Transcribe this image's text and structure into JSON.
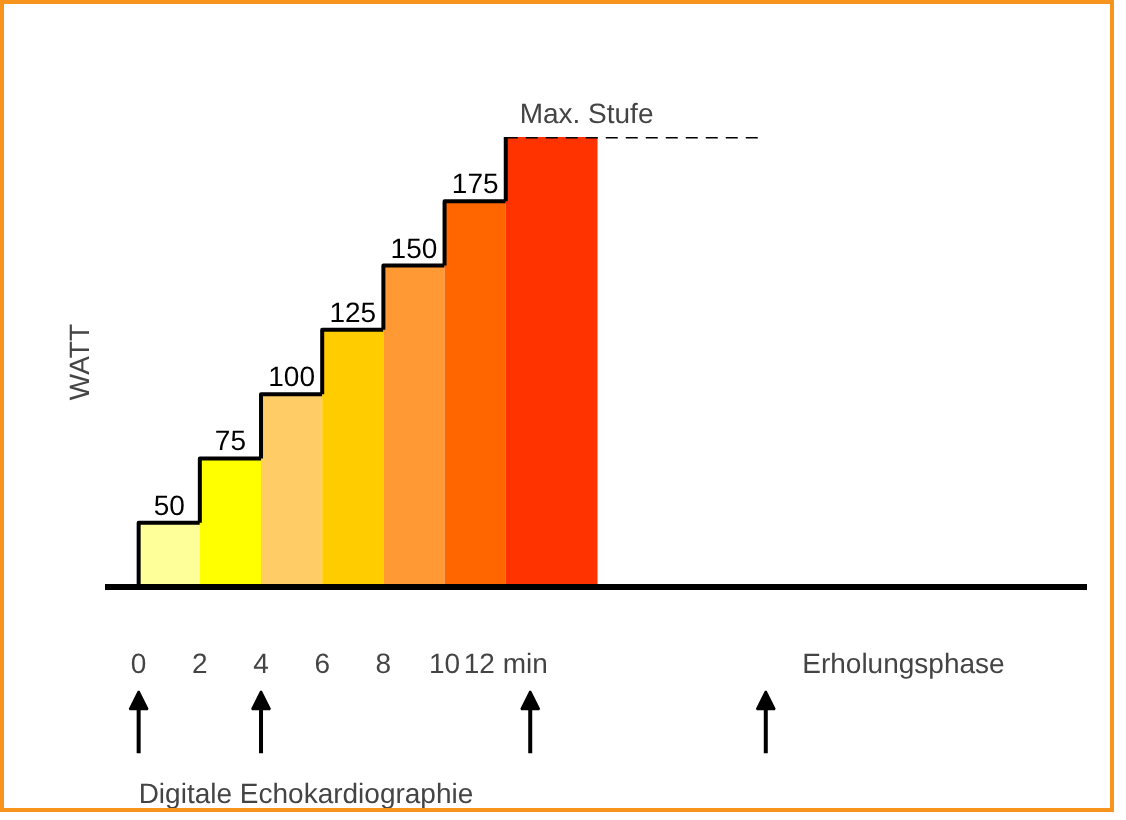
{
  "chart_data": {
    "type": "bar",
    "ylabel": "WATT",
    "x": [
      1,
      3,
      5,
      7,
      9,
      11,
      13.5
    ],
    "series": [
      {
        "colors": [
          "#ffff99",
          "#ffff00",
          "#ffcc66",
          "#ffcc00",
          "#ff9933",
          "#ff6600",
          "#ff3300"
        ],
        "values": [
          50,
          75,
          100,
          125,
          150,
          175,
          200
        ],
        "value_labels": [
          "50",
          "75",
          "100",
          "125",
          "150",
          "175",
          null
        ]
      }
    ],
    "xlim": [
      -1.1,
      31
    ],
    "xticks": [
      0,
      2,
      4,
      6,
      8,
      10,
      {
        "value": 12,
        "label": "12 min"
      },
      {
        "value": 25,
        "label": "Erholungsphase"
      }
    ],
    "ylim": [
      25,
      200
    ],
    "ref_lines": [
      {
        "axis": "y",
        "value": 200,
        "color": "#000000",
        "line_style": "dashed"
      }
    ],
    "annotations": [
      "Max. Stufe",
      "Digitale Echokardiographie"
    ],
    "grid": false
  }
}
